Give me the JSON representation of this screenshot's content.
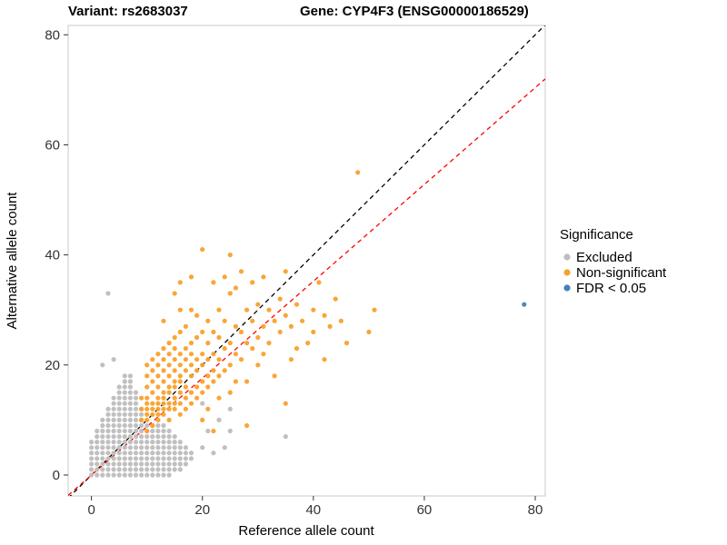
{
  "chart_data": {
    "type": "scatter",
    "title_left": "Variant: rs2683037",
    "title_right": "Gene: CYP4F3 (ENSG00000186529)",
    "xlabel": "Reference allele count",
    "ylabel": "Alternative allele count",
    "xlim": [
      -4.2,
      81.8
    ],
    "ylim": [
      -3.8,
      81.7
    ],
    "xticks": [
      0,
      20,
      40,
      60,
      80
    ],
    "yticks": [
      0,
      20,
      40,
      60,
      80
    ],
    "grid": false,
    "panel_border_color": "#c9c9c9",
    "legend": {
      "title": "Significance",
      "position": "right",
      "entries": [
        {
          "label": "Excluded",
          "color": "#bdbdbd"
        },
        {
          "label": "Non-significant",
          "color": "#f9a12b"
        },
        {
          "label": "FDR < 0.05",
          "color": "#4682b4"
        }
      ]
    },
    "lines": [
      {
        "name": "identity-line",
        "slope": 1.0,
        "intercept": 0,
        "color": "#000000",
        "dash": "5,4"
      },
      {
        "name": "fit-line",
        "slope": 0.88,
        "intercept": 0,
        "color": "#ff0000",
        "dash": "5,4"
      }
    ],
    "lattice_rows_format": "[y, x_min, x_max] inclusive integer run of points",
    "series": [
      {
        "name": "Excluded",
        "color": "#bdbdbd",
        "lattice_rows": [
          [
            0,
            0,
            14
          ],
          [
            1,
            0,
            16
          ],
          [
            2,
            0,
            17
          ],
          [
            3,
            0,
            18
          ],
          [
            4,
            0,
            18
          ],
          [
            5,
            0,
            17
          ],
          [
            6,
            0,
            16
          ],
          [
            7,
            1,
            15
          ],
          [
            8,
            1,
            14
          ],
          [
            9,
            2,
            13
          ],
          [
            10,
            2,
            9
          ],
          [
            11,
            3,
            9
          ],
          [
            12,
            3,
            9
          ],
          [
            13,
            4,
            8
          ],
          [
            14,
            4,
            8
          ],
          [
            15,
            5,
            8
          ],
          [
            16,
            5,
            7
          ],
          [
            17,
            6,
            7
          ],
          [
            18,
            6,
            7
          ]
        ],
        "points": [
          [
            2,
            20
          ],
          [
            4,
            21
          ],
          [
            3,
            33
          ],
          [
            20,
            5
          ],
          [
            21,
            8
          ],
          [
            22,
            4
          ],
          [
            25,
            8
          ],
          [
            25,
            12
          ],
          [
            35,
            7
          ],
          [
            20,
            13
          ],
          [
            23,
            10
          ],
          [
            24,
            5
          ]
        ]
      },
      {
        "name": "Non-significant",
        "color": "#f9a12b",
        "points": [
          [
            9,
            10
          ],
          [
            9,
            12
          ],
          [
            9,
            14
          ],
          [
            10,
            8
          ],
          [
            10,
            10
          ],
          [
            10,
            11
          ],
          [
            10,
            12
          ],
          [
            10,
            13
          ],
          [
            10,
            14
          ],
          [
            10,
            16
          ],
          [
            10,
            18
          ],
          [
            10,
            20
          ],
          [
            11,
            9
          ],
          [
            11,
            11
          ],
          [
            11,
            12
          ],
          [
            11,
            13
          ],
          [
            11,
            15
          ],
          [
            11,
            17
          ],
          [
            11,
            19
          ],
          [
            11,
            21
          ],
          [
            12,
            10
          ],
          [
            12,
            11
          ],
          [
            12,
            12
          ],
          [
            12,
            13
          ],
          [
            12,
            14
          ],
          [
            12,
            16
          ],
          [
            12,
            18
          ],
          [
            12,
            20
          ],
          [
            12,
            22
          ],
          [
            13,
            11
          ],
          [
            13,
            12
          ],
          [
            13,
            13
          ],
          [
            13,
            14
          ],
          [
            13,
            15
          ],
          [
            13,
            17
          ],
          [
            13,
            19
          ],
          [
            13,
            21
          ],
          [
            13,
            23
          ],
          [
            13,
            28
          ],
          [
            14,
            10
          ],
          [
            14,
            12
          ],
          [
            14,
            13
          ],
          [
            14,
            15
          ],
          [
            14,
            16
          ],
          [
            14,
            18
          ],
          [
            14,
            20
          ],
          [
            14,
            22
          ],
          [
            14,
            24
          ],
          [
            15,
            12
          ],
          [
            15,
            13
          ],
          [
            15,
            14
          ],
          [
            15,
            16
          ],
          [
            15,
            17
          ],
          [
            15,
            19
          ],
          [
            15,
            21
          ],
          [
            15,
            23
          ],
          [
            15,
            25
          ],
          [
            15,
            33
          ],
          [
            16,
            11
          ],
          [
            16,
            13
          ],
          [
            16,
            15
          ],
          [
            16,
            17
          ],
          [
            16,
            18
          ],
          [
            16,
            20
          ],
          [
            16,
            22
          ],
          [
            16,
            26
          ],
          [
            16,
            30
          ],
          [
            16,
            35
          ],
          [
            17,
            12
          ],
          [
            17,
            14
          ],
          [
            17,
            16
          ],
          [
            17,
            19
          ],
          [
            17,
            21
          ],
          [
            17,
            23
          ],
          [
            17,
            27
          ],
          [
            18,
            13
          ],
          [
            18,
            15
          ],
          [
            18,
            18
          ],
          [
            18,
            20
          ],
          [
            18,
            22
          ],
          [
            18,
            24
          ],
          [
            18,
            30
          ],
          [
            18,
            36
          ],
          [
            19,
            14
          ],
          [
            19,
            16
          ],
          [
            19,
            19
          ],
          [
            19,
            21
          ],
          [
            19,
            25
          ],
          [
            19,
            29
          ],
          [
            20,
            15
          ],
          [
            20,
            17
          ],
          [
            20,
            20
          ],
          [
            20,
            22
          ],
          [
            20,
            26
          ],
          [
            20,
            41
          ],
          [
            20,
            10
          ],
          [
            21,
            16
          ],
          [
            21,
            18
          ],
          [
            21,
            21
          ],
          [
            21,
            24
          ],
          [
            21,
            28
          ],
          [
            21,
            12
          ],
          [
            22,
            17
          ],
          [
            22,
            19
          ],
          [
            22,
            22
          ],
          [
            22,
            26
          ],
          [
            22,
            35
          ],
          [
            22,
            8
          ],
          [
            23,
            18
          ],
          [
            23,
            21
          ],
          [
            23,
            25
          ],
          [
            23,
            30
          ],
          [
            23,
            14
          ],
          [
            24,
            19
          ],
          [
            24,
            23
          ],
          [
            24,
            28
          ],
          [
            24,
            36
          ],
          [
            25,
            20
          ],
          [
            25,
            24
          ],
          [
            25,
            33
          ],
          [
            25,
            40
          ],
          [
            25,
            15
          ],
          [
            26,
            22
          ],
          [
            26,
            27
          ],
          [
            26,
            34
          ],
          [
            26,
            17
          ],
          [
            27,
            21
          ],
          [
            27,
            26
          ],
          [
            27,
            37
          ],
          [
            28,
            24
          ],
          [
            28,
            30
          ],
          [
            28,
            17
          ],
          [
            28,
            9
          ],
          [
            29,
            23
          ],
          [
            29,
            28
          ],
          [
            29,
            35
          ],
          [
            30,
            25
          ],
          [
            30,
            31
          ],
          [
            30,
            20
          ],
          [
            31,
            27
          ],
          [
            31,
            36
          ],
          [
            31,
            22
          ],
          [
            32,
            24
          ],
          [
            32,
            30
          ],
          [
            33,
            28
          ],
          [
            33,
            18
          ],
          [
            34,
            26
          ],
          [
            34,
            32
          ],
          [
            35,
            29
          ],
          [
            35,
            13
          ],
          [
            35,
            37
          ],
          [
            36,
            27
          ],
          [
            36,
            21
          ],
          [
            37,
            31
          ],
          [
            37,
            23
          ],
          [
            38,
            28
          ],
          [
            39,
            24
          ],
          [
            40,
            30
          ],
          [
            40,
            26
          ],
          [
            41,
            35
          ],
          [
            42,
            29
          ],
          [
            42,
            21
          ],
          [
            43,
            27
          ],
          [
            44,
            32
          ],
          [
            45,
            28
          ],
          [
            46,
            24
          ],
          [
            48,
            55
          ],
          [
            50,
            26
          ],
          [
            51,
            30
          ]
        ]
      },
      {
        "name": "FDR < 0.05",
        "color": "#4682b4",
        "points": [
          [
            78,
            31
          ]
        ]
      }
    ]
  }
}
